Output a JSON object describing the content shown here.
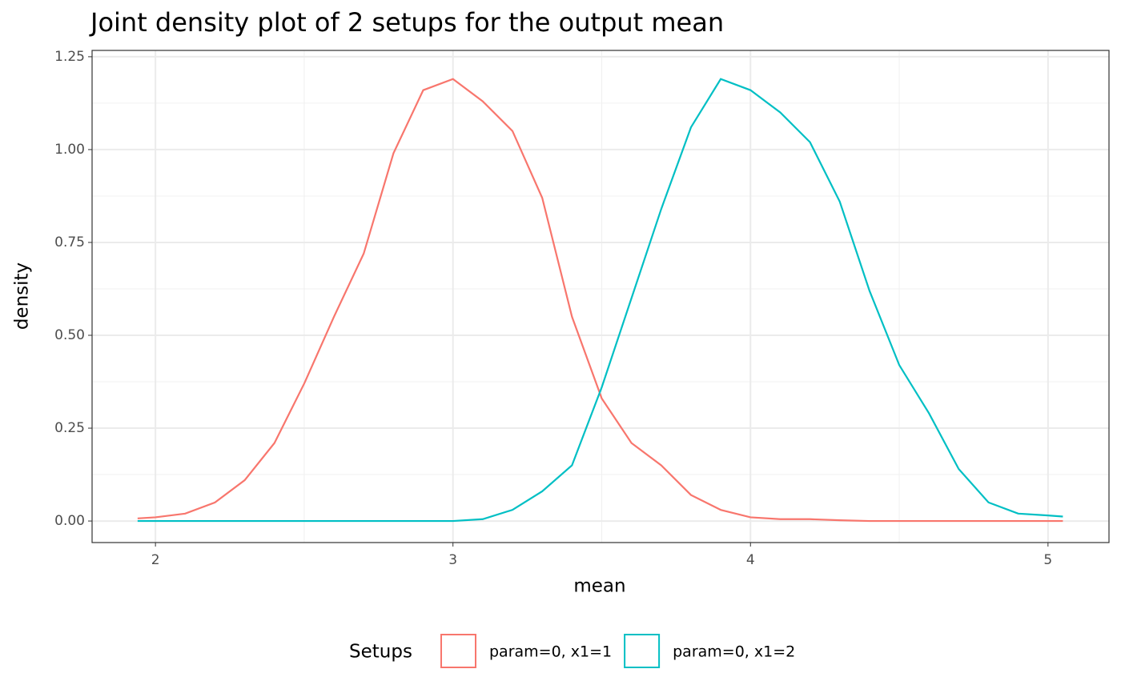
{
  "chart_data": {
    "type": "line",
    "title": "Joint density plot of 2 setups for the output mean",
    "x_label": "mean",
    "y_label": "density",
    "legend_title": "Setups",
    "legend_position": "bottom",
    "grid": true,
    "x": [
      1.94,
      2.0,
      2.1,
      2.2,
      2.3,
      2.4,
      2.5,
      2.6,
      2.7,
      2.8,
      2.9,
      3.0,
      3.1,
      3.2,
      3.3,
      3.4,
      3.5,
      3.6,
      3.7,
      3.8,
      3.9,
      4.0,
      4.1,
      4.2,
      4.3,
      4.4,
      4.5,
      4.6,
      4.7,
      4.8,
      4.9,
      5.0,
      5.05
    ],
    "series": [
      {
        "name": "param=0, x1=1",
        "color": "#F8766D",
        "values": [
          0.007,
          0.01,
          0.02,
          0.05,
          0.11,
          0.21,
          0.37,
          0.55,
          0.72,
          0.99,
          1.16,
          1.19,
          1.13,
          1.05,
          0.87,
          0.55,
          0.33,
          0.21,
          0.15,
          0.07,
          0.03,
          0.01,
          0.005,
          0.005,
          0.002,
          0,
          0,
          0,
          0,
          0,
          0,
          0,
          0
        ]
      },
      {
        "name": "param=0, x1=2",
        "color": "#00BFC4",
        "values": [
          0,
          0,
          0,
          0,
          0,
          0,
          0,
          0,
          0,
          0,
          0,
          0,
          0.005,
          0.03,
          0.08,
          0.15,
          0.36,
          0.6,
          0.84,
          1.06,
          1.19,
          1.16,
          1.1,
          1.02,
          0.86,
          0.62,
          0.42,
          0.29,
          0.14,
          0.05,
          0.02,
          0.015,
          0.012
        ]
      }
    ],
    "xlim": [
      1.787,
      5.205
    ],
    "xticks": [
      2,
      3,
      4,
      5
    ],
    "ylim": [
      -0.058,
      1.267
    ],
    "yticks": [
      {
        "value": 0,
        "label": "0.00"
      },
      {
        "value": 0.25,
        "label": "0.25"
      },
      {
        "value": 0.5,
        "label": "0.50"
      },
      {
        "value": 0.75,
        "label": "0.75"
      },
      {
        "value": 1.0,
        "label": "1.00"
      },
      {
        "value": 1.25,
        "label": "1.25"
      }
    ]
  }
}
